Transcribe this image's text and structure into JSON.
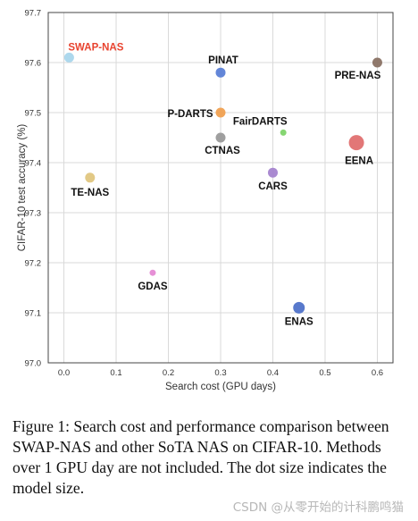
{
  "chart_data": {
    "type": "scatter",
    "title": "",
    "xlabel": "Search cost (GPU days)",
    "ylabel": "CIFAR-10 test accuracy (%)",
    "xlim": [
      -0.03,
      0.63
    ],
    "ylim": [
      97.0,
      97.7
    ],
    "xticks": [
      "0.0",
      "0.1",
      "0.2",
      "0.3",
      "0.4",
      "0.5",
      "0.6"
    ],
    "yticks": [
      "97.0",
      "97.1",
      "97.2",
      "97.3",
      "97.4",
      "97.5",
      "97.6",
      "97.7"
    ],
    "grid": true,
    "points": [
      {
        "name": "SWAP-NAS",
        "x": 0.01,
        "y": 97.61,
        "size": 2,
        "color": "#a9d6ec",
        "label_color": "#e8432f"
      },
      {
        "name": "PINAT",
        "x": 0.3,
        "y": 97.58,
        "size": 2,
        "color": "#5b7fd6",
        "label_color": "#111111"
      },
      {
        "name": "PRE-NAS",
        "x": 0.6,
        "y": 97.6,
        "size": 2,
        "color": "#8a7264",
        "label_color": "#111111"
      },
      {
        "name": "P-DARTS",
        "x": 0.3,
        "y": 97.5,
        "size": 2,
        "color": "#f0a050",
        "label_color": "#111111"
      },
      {
        "name": "FairDARTS",
        "x": 0.42,
        "y": 97.46,
        "size": 1,
        "color": "#7fd46a",
        "label_color": "#111111"
      },
      {
        "name": "CTNAS",
        "x": 0.3,
        "y": 97.45,
        "size": 2,
        "color": "#9a9a9a",
        "label_color": "#111111"
      },
      {
        "name": "EENA",
        "x": 0.56,
        "y": 97.44,
        "size": 4,
        "color": "#e07070",
        "label_color": "#111111"
      },
      {
        "name": "TE-NAS",
        "x": 0.05,
        "y": 97.37,
        "size": 2,
        "color": "#e0c680",
        "label_color": "#111111"
      },
      {
        "name": "CARS",
        "x": 0.4,
        "y": 97.38,
        "size": 2,
        "color": "#a584cf",
        "label_color": "#111111"
      },
      {
        "name": "GDAS",
        "x": 0.17,
        "y": 97.18,
        "size": 1,
        "color": "#e58ad4",
        "label_color": "#111111"
      },
      {
        "name": "ENAS",
        "x": 0.45,
        "y": 97.11,
        "size": 3,
        "color": "#4f72c9",
        "label_color": "#111111"
      }
    ]
  },
  "caption": "Figure 1: Search cost and performance comparison between SWAP-NAS and other SoTA NAS on CIFAR-10. Methods over 1 GPU day are not included. The dot size indicates the model size.",
  "watermark": "CSDN @从零开始的计科鹏鸣猫"
}
